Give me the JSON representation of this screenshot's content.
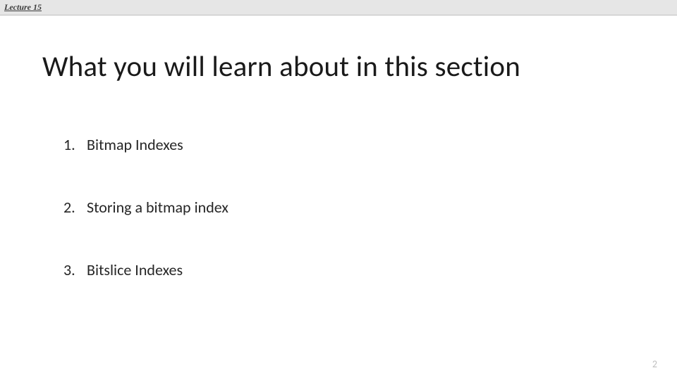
{
  "header": {
    "label": "Lecture 15"
  },
  "title": "What you will learn about in this section",
  "items": [
    {
      "num": "1.",
      "text": "Bitmap Indexes"
    },
    {
      "num": "2.",
      "text": "Storing a bitmap index"
    },
    {
      "num": "3.",
      "text": "Bitslice Indexes"
    }
  ],
  "page_number": "2"
}
